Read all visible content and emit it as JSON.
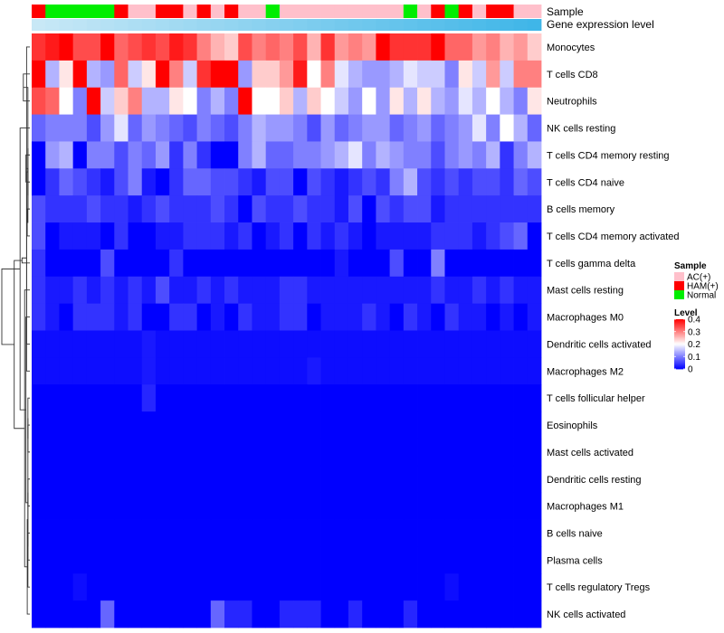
{
  "chart_data": {
    "type": "heatmap",
    "title": "",
    "annotation_labels": [
      "Sample",
      "Gene expression level"
    ],
    "row_labels": [
      "Monocytes",
      "T cells CD8",
      "Neutrophils",
      "NK cells resting",
      "T cells CD4 memory resting",
      "T cells CD4 naive",
      "B cells memory",
      "T cells CD4 memory activated",
      "T cells gamma delta",
      "Mast cells resting",
      "Macrophages M0",
      "Dendritic cells activated",
      "Macrophages M2",
      "T cells follicular helper",
      "Eosinophils",
      "Mast cells activated",
      "Dendritic cells resting",
      "Macrophages M1",
      "B cells naive",
      "Plasma cells",
      "T cells regulatory  Tregs",
      "NK cells activated"
    ],
    "sample_groups": [
      "HAM(+)",
      "Normal",
      "Normal",
      "Normal",
      "Normal",
      "Normal",
      "HAM(+)",
      "AC(+)",
      "AC(+)",
      "HAM(+)",
      "HAM(+)",
      "AC(+)",
      "HAM(+)",
      "AC(+)",
      "HAM(+)",
      "AC(+)",
      "AC(+)",
      "Normal",
      "AC(+)",
      "AC(+)",
      "AC(+)",
      "AC(+)",
      "AC(+)",
      "AC(+)",
      "AC(+)",
      "AC(+)",
      "AC(+)",
      "Normal",
      "AC(+)",
      "HAM(+)",
      "Normal",
      "HAM(+)",
      "AC(+)",
      "HAM(+)",
      "HAM(+)",
      "AC(+)",
      "AC(+)"
    ],
    "values": [
      [
        0.36,
        0.38,
        0.4,
        0.34,
        0.34,
        0.4,
        0.32,
        0.34,
        0.36,
        0.34,
        0.38,
        0.36,
        0.3,
        0.26,
        0.24,
        0.34,
        0.3,
        0.32,
        0.3,
        0.34,
        0.26,
        0.36,
        0.28,
        0.3,
        0.28,
        0.4,
        0.36,
        0.36,
        0.36,
        0.4,
        0.32,
        0.32,
        0.28,
        0.3,
        0.26,
        0.28,
        0.24
      ],
      [
        0.4,
        0.14,
        0.22,
        0.4,
        0.14,
        0.12,
        0.32,
        0.16,
        0.22,
        0.42,
        0.3,
        0.16,
        0.36,
        0.42,
        0.42,
        0.12,
        0.24,
        0.24,
        0.28,
        0.38,
        0.2,
        0.3,
        0.18,
        0.14,
        0.12,
        0.12,
        0.14,
        0.18,
        0.16,
        0.16,
        0.1,
        0.22,
        0.16,
        0.28,
        0.16,
        0.3,
        0.3
      ],
      [
        0.34,
        0.32,
        0.2,
        0.1,
        0.4,
        0.16,
        0.24,
        0.3,
        0.14,
        0.14,
        0.22,
        0.2,
        0.1,
        0.14,
        0.1,
        0.4,
        0.2,
        0.2,
        0.24,
        0.14,
        0.24,
        0.2,
        0.16,
        0.12,
        0.2,
        0.12,
        0.22,
        0.14,
        0.22,
        0.14,
        0.12,
        0.18,
        0.14,
        0.2,
        0.14,
        0.1,
        0.22
      ],
      [
        0.08,
        0.1,
        0.1,
        0.1,
        0.06,
        0.12,
        0.18,
        0.08,
        0.12,
        0.1,
        0.08,
        0.06,
        0.1,
        0.08,
        0.06,
        0.1,
        0.14,
        0.12,
        0.12,
        0.1,
        0.06,
        0.12,
        0.08,
        0.1,
        0.12,
        0.12,
        0.08,
        0.1,
        0.12,
        0.08,
        0.1,
        0.12,
        0.18,
        0.1,
        0.2,
        0.14,
        0.08
      ],
      [
        0.0,
        0.12,
        0.14,
        0.0,
        0.1,
        0.1,
        0.06,
        0.1,
        0.08,
        0.12,
        0.04,
        0.1,
        0.04,
        0.0,
        0.0,
        0.1,
        0.14,
        0.08,
        0.08,
        0.1,
        0.1,
        0.12,
        0.14,
        0.18,
        0.1,
        0.14,
        0.12,
        0.1,
        0.1,
        0.06,
        0.1,
        0.12,
        0.1,
        0.14,
        0.04,
        0.1,
        0.14
      ],
      [
        0.0,
        0.04,
        0.08,
        0.06,
        0.04,
        0.02,
        0.06,
        0.1,
        0.02,
        0.0,
        0.04,
        0.08,
        0.08,
        0.06,
        0.06,
        0.04,
        0.02,
        0.06,
        0.06,
        0.0,
        0.06,
        0.04,
        0.02,
        0.04,
        0.06,
        0.04,
        0.1,
        0.14,
        0.06,
        0.04,
        0.06,
        0.04,
        0.06,
        0.06,
        0.04,
        0.08,
        0.06
      ],
      [
        0.06,
        0.04,
        0.04,
        0.04,
        0.06,
        0.04,
        0.04,
        0.02,
        0.04,
        0.06,
        0.04,
        0.04,
        0.04,
        0.06,
        0.04,
        0.0,
        0.06,
        0.04,
        0.04,
        0.06,
        0.04,
        0.04,
        0.02,
        0.06,
        0.0,
        0.06,
        0.04,
        0.06,
        0.06,
        0.02,
        0.04,
        0.04,
        0.04,
        0.04,
        0.04,
        0.04,
        0.04
      ],
      [
        0.06,
        0.0,
        0.02,
        0.02,
        0.02,
        0.0,
        0.04,
        0.0,
        0.0,
        0.02,
        0.02,
        0.04,
        0.04,
        0.04,
        0.02,
        0.04,
        0.0,
        0.02,
        0.04,
        0.0,
        0.04,
        0.02,
        0.04,
        0.02,
        0.0,
        0.02,
        0.02,
        0.02,
        0.02,
        0.04,
        0.04,
        0.04,
        0.02,
        0.04,
        0.06,
        0.08,
        0.0
      ],
      [
        0.04,
        0.0,
        0.0,
        0.0,
        0.0,
        0.06,
        0.0,
        0.0,
        0.0,
        0.0,
        0.04,
        0.0,
        0.0,
        0.0,
        0.0,
        0.0,
        0.0,
        0.0,
        0.0,
        0.0,
        0.0,
        0.0,
        0.02,
        0.0,
        0.0,
        0.0,
        0.06,
        0.0,
        0.0,
        0.1,
        0.0,
        0.0,
        0.0,
        0.0,
        0.0,
        0.0,
        0.0
      ],
      [
        0.04,
        0.02,
        0.02,
        0.04,
        0.02,
        0.04,
        0.02,
        0.04,
        0.02,
        0.06,
        0.02,
        0.02,
        0.04,
        0.02,
        0.04,
        0.02,
        0.02,
        0.02,
        0.04,
        0.04,
        0.02,
        0.02,
        0.02,
        0.02,
        0.02,
        0.02,
        0.02,
        0.02,
        0.02,
        0.04,
        0.02,
        0.02,
        0.04,
        0.02,
        0.04,
        0.02,
        0.02
      ],
      [
        0.04,
        0.02,
        0.0,
        0.04,
        0.04,
        0.04,
        0.02,
        0.04,
        0.0,
        0.0,
        0.04,
        0.04,
        0.0,
        0.02,
        0.0,
        0.04,
        0.02,
        0.02,
        0.04,
        0.04,
        0.0,
        0.02,
        0.02,
        0.02,
        0.04,
        0.02,
        0.0,
        0.04,
        0.02,
        0.0,
        0.04,
        0.02,
        0.02,
        0.0,
        0.02,
        0.0,
        0.02
      ],
      [
        0.01,
        0.01,
        0.01,
        0.01,
        0.01,
        0.01,
        0.01,
        0.01,
        0.02,
        0.01,
        0.01,
        0.01,
        0.01,
        0.01,
        0.01,
        0.01,
        0.01,
        0.01,
        0.01,
        0.01,
        0.01,
        0.01,
        0.01,
        0.01,
        0.01,
        0.01,
        0.01,
        0.01,
        0.01,
        0.01,
        0.01,
        0.01,
        0.01,
        0.01,
        0.01,
        0.01,
        0.01
      ],
      [
        0.01,
        0.01,
        0.01,
        0.01,
        0.01,
        0.01,
        0.01,
        0.01,
        0.02,
        0.01,
        0.01,
        0.01,
        0.01,
        0.01,
        0.01,
        0.01,
        0.01,
        0.01,
        0.01,
        0.01,
        0.02,
        0.01,
        0.01,
        0.01,
        0.01,
        0.01,
        0.01,
        0.01,
        0.01,
        0.01,
        0.01,
        0.01,
        0.01,
        0.01,
        0.01,
        0.01,
        0.01
      ],
      [
        0.0,
        0.0,
        0.0,
        0.0,
        0.0,
        0.0,
        0.0,
        0.0,
        0.03,
        0.0,
        0.0,
        0.0,
        0.0,
        0.0,
        0.0,
        0.0,
        0.0,
        0.0,
        0.0,
        0.0,
        0.0,
        0.0,
        0.0,
        0.0,
        0.0,
        0.0,
        0.0,
        0.0,
        0.0,
        0.0,
        0.0,
        0.0,
        0.0,
        0.0,
        0.0,
        0.0,
        0.0
      ],
      [
        0.0,
        0.0,
        0.0,
        0.0,
        0.0,
        0.0,
        0.0,
        0.0,
        0.0,
        0.0,
        0.0,
        0.0,
        0.0,
        0.0,
        0.0,
        0.0,
        0.0,
        0.0,
        0.0,
        0.0,
        0.0,
        0.0,
        0.0,
        0.0,
        0.0,
        0.0,
        0.0,
        0.0,
        0.0,
        0.0,
        0.0,
        0.0,
        0.0,
        0.0,
        0.0,
        0.0,
        0.0
      ],
      [
        0.0,
        0.0,
        0.0,
        0.0,
        0.0,
        0.0,
        0.0,
        0.0,
        0.0,
        0.0,
        0.0,
        0.0,
        0.0,
        0.0,
        0.0,
        0.0,
        0.0,
        0.0,
        0.0,
        0.0,
        0.0,
        0.0,
        0.0,
        0.0,
        0.0,
        0.0,
        0.0,
        0.0,
        0.0,
        0.0,
        0.0,
        0.0,
        0.0,
        0.0,
        0.0,
        0.0,
        0.0
      ],
      [
        0.0,
        0.0,
        0.0,
        0.0,
        0.0,
        0.0,
        0.0,
        0.0,
        0.0,
        0.0,
        0.0,
        0.0,
        0.0,
        0.0,
        0.0,
        0.0,
        0.0,
        0.0,
        0.0,
        0.0,
        0.0,
        0.0,
        0.0,
        0.0,
        0.0,
        0.0,
        0.0,
        0.0,
        0.0,
        0.0,
        0.0,
        0.0,
        0.0,
        0.0,
        0.0,
        0.0,
        0.0
      ],
      [
        0.0,
        0.0,
        0.0,
        0.0,
        0.0,
        0.0,
        0.0,
        0.0,
        0.0,
        0.0,
        0.0,
        0.0,
        0.0,
        0.0,
        0.0,
        0.0,
        0.0,
        0.0,
        0.0,
        0.0,
        0.0,
        0.0,
        0.0,
        0.0,
        0.0,
        0.0,
        0.0,
        0.0,
        0.0,
        0.0,
        0.0,
        0.0,
        0.0,
        0.0,
        0.0,
        0.0,
        0.0
      ],
      [
        0.0,
        0.0,
        0.0,
        0.0,
        0.0,
        0.0,
        0.0,
        0.0,
        0.0,
        0.0,
        0.0,
        0.0,
        0.0,
        0.0,
        0.0,
        0.0,
        0.0,
        0.0,
        0.0,
        0.0,
        0.0,
        0.0,
        0.0,
        0.0,
        0.0,
        0.0,
        0.0,
        0.0,
        0.0,
        0.0,
        0.0,
        0.0,
        0.0,
        0.0,
        0.0,
        0.0,
        0.0
      ],
      [
        0.0,
        0.0,
        0.0,
        0.0,
        0.0,
        0.0,
        0.0,
        0.0,
        0.0,
        0.0,
        0.0,
        0.0,
        0.0,
        0.0,
        0.0,
        0.0,
        0.0,
        0.0,
        0.0,
        0.0,
        0.0,
        0.0,
        0.0,
        0.0,
        0.0,
        0.0,
        0.0,
        0.0,
        0.0,
        0.0,
        0.0,
        0.0,
        0.0,
        0.0,
        0.0,
        0.0,
        0.0
      ],
      [
        0.0,
        0.0,
        0.0,
        0.01,
        0.0,
        0.0,
        0.0,
        0.0,
        0.0,
        0.0,
        0.0,
        0.0,
        0.0,
        0.0,
        0.0,
        0.0,
        0.0,
        0.0,
        0.0,
        0.0,
        0.0,
        0.0,
        0.0,
        0.0,
        0.0,
        0.0,
        0.0,
        0.0,
        0.0,
        0.0,
        0.01,
        0.0,
        0.0,
        0.0,
        0.0,
        0.0,
        0.0
      ],
      [
        0.0,
        0.0,
        0.0,
        0.0,
        0.0,
        0.08,
        0.0,
        0.0,
        0.0,
        0.0,
        0.0,
        0.0,
        0.0,
        0.08,
        0.03,
        0.03,
        0.0,
        0.0,
        0.03,
        0.03,
        0.03,
        0.0,
        0.0,
        0.03,
        0.0,
        0.0,
        0.0,
        0.03,
        0.0,
        0.0,
        0.0,
        0.0,
        0.0,
        0.0,
        0.0,
        0.0,
        0.0
      ]
    ],
    "color_scale": {
      "min": 0,
      "max": 0.4,
      "stops": [
        {
          "value": 0,
          "color": "#0000ff"
        },
        {
          "value": 0.2,
          "color": "#ffffff"
        },
        {
          "value": 0.4,
          "color": "#ff0000"
        }
      ]
    },
    "legend": {
      "sample_title": "Sample",
      "sample_items": [
        {
          "label": "AC(+)",
          "color": "#ffc0cb"
        },
        {
          "label": "HAM(+)",
          "color": "#ff0000"
        },
        {
          "label": "Normal",
          "color": "#00ee00"
        }
      ],
      "level_title": "Level",
      "level_ticks": [
        {
          "value": 0.4,
          "label": "0.4"
        },
        {
          "value": 0.3,
          "label": "0.3"
        },
        {
          "value": 0.2,
          "label": "0.2"
        },
        {
          "value": 0.1,
          "label": "0.1"
        },
        {
          "value": 0,
          "label": "0"
        }
      ]
    },
    "expression_bar": {
      "from_color": "#c8e8f6",
      "to_color": "#3fb6e8"
    },
    "row_dendrogram": [
      [
        1,
        2,
        0.1
      ],
      [
        0,
        12,
        0.05
      ],
      [
        4,
        5,
        0.06
      ],
      [
        6,
        7,
        0.04
      ],
      [
        14,
        15,
        0.03
      ],
      [
        16,
        17,
        0.03
      ],
      [
        18,
        19,
        0.03
      ],
      [
        22,
        23,
        0.03
      ],
      [
        24,
        25,
        0.03
      ],
      [
        26,
        13,
        0.03
      ],
      [
        27,
        28,
        0.03
      ],
      [
        29,
        30,
        0.03
      ],
      [
        31,
        20,
        0.03
      ],
      [
        32,
        21,
        0.04
      ],
      [
        33,
        11,
        0.05
      ],
      [
        34,
        10,
        0.06
      ],
      [
        35,
        9,
        0.08
      ],
      [
        36,
        8,
        0.12
      ],
      [
        3,
        37,
        0.15
      ],
      [
        39,
        38,
        0.24
      ],
      [
        40,
        41,
        0.43
      ]
    ]
  }
}
